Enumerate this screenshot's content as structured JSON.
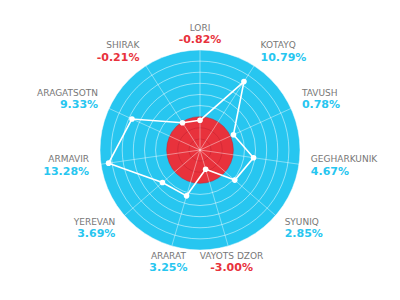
{
  "chart_data": {
    "type": "radar",
    "categories": [
      "LORI",
      "KOTAYQ",
      "TAVUSH",
      "GEGHARKUNIK",
      "SYUNIQ",
      "VAYOTS DZOR",
      "ARARAT",
      "YEREVAN",
      "ARMAVIR",
      "ARAGATSOTN",
      "SHIRAK"
    ],
    "values": [
      -0.82,
      10.79,
      0.78,
      4.67,
      2.85,
      -3.0,
      3.25,
      3.69,
      13.28,
      9.33,
      -0.21
    ],
    "value_labels": [
      "-0.82%",
      "10.79%",
      "0.78%",
      "4.67%",
      "2.85%",
      "-3.00%",
      "3.25%",
      "3.69%",
      "13.28%",
      "9.33%",
      "-0.21%"
    ],
    "colors": [
      "#E8323C",
      "#27C6F0",
      "#27C6F0",
      "#27C6F0",
      "#27C6F0",
      "#E8323C",
      "#27C6F0",
      "#27C6F0",
      "#27C6F0",
      "#27C6F0",
      "#E8323C"
    ],
    "ylim": [
      -7.5,
      15
    ],
    "yticks": [
      -7.5,
      -5,
      -2.5,
      0,
      2.5,
      5,
      7.5,
      10,
      12.5,
      15
    ],
    "grid": true,
    "tick_labels": false,
    "data_labels": true
  }
}
